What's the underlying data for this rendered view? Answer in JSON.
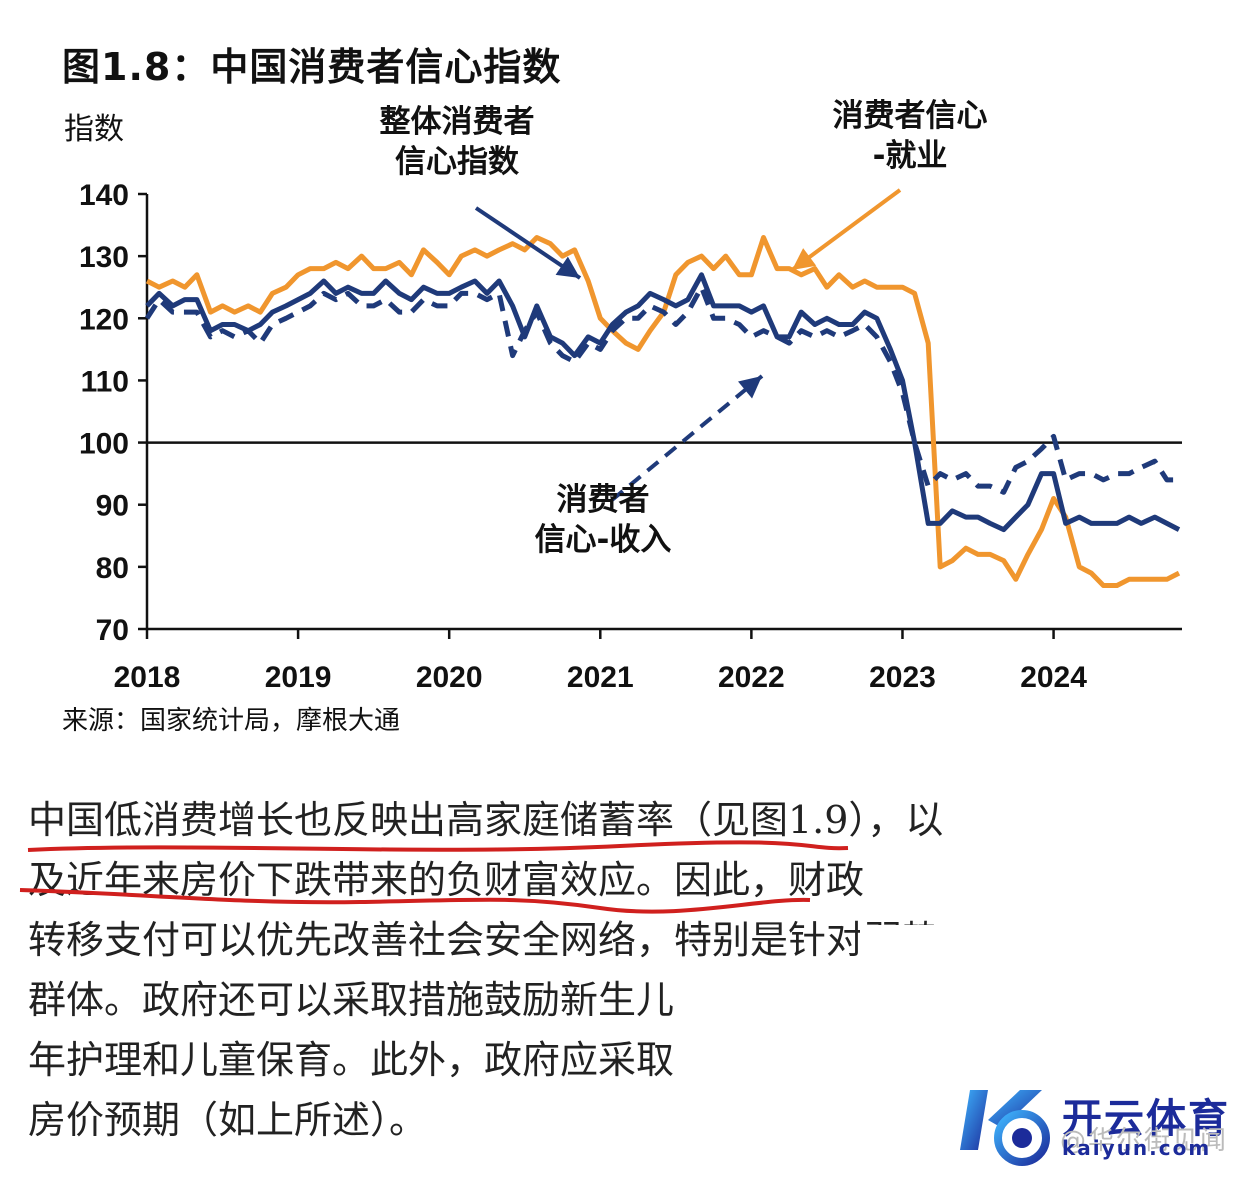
{
  "chart_data": {
    "type": "line",
    "title": "图1.8：中国消费者信心指数",
    "ylabel": "指数",
    "ylim": [
      70,
      140
    ],
    "yticks": [
      140,
      130,
      120,
      110,
      100,
      90,
      80,
      70
    ],
    "xlim": [
      2018.0,
      2024.85
    ],
    "xticks": [
      "2018",
      "2019",
      "2020",
      "2021",
      "2022",
      "2023",
      "2024"
    ],
    "reference_line": 100,
    "grid": false,
    "legend": "none",
    "source": "来源：国家统计局，摩根大通",
    "annotations": [
      {
        "text": "整体消费者信心指数",
        "line1": "整体消费者",
        "line2": "信心指数",
        "target_series": "overall"
      },
      {
        "text": "消费者信心-就业",
        "line1": "消费者信心",
        "line2": "-就业",
        "target_series": "employment"
      },
      {
        "text": "消费者信心-收入",
        "line1": "消费者",
        "line2": "信心-收入",
        "target_series": "income"
      }
    ],
    "series": [
      {
        "id": "employment",
        "color": "#f0962e",
        "dash": false,
        "points": [
          [
            2018.0,
            126
          ],
          [
            2018.08,
            125
          ],
          [
            2018.17,
            126
          ],
          [
            2018.25,
            125
          ],
          [
            2018.33,
            127
          ],
          [
            2018.42,
            121
          ],
          [
            2018.5,
            122
          ],
          [
            2018.58,
            121
          ],
          [
            2018.67,
            122
          ],
          [
            2018.75,
            121
          ],
          [
            2018.83,
            124
          ],
          [
            2018.92,
            125
          ],
          [
            2019.0,
            127
          ],
          [
            2019.08,
            128
          ],
          [
            2019.17,
            128
          ],
          [
            2019.25,
            129
          ],
          [
            2019.33,
            128
          ],
          [
            2019.42,
            130
          ],
          [
            2019.5,
            128
          ],
          [
            2019.58,
            128
          ],
          [
            2019.67,
            129
          ],
          [
            2019.75,
            127
          ],
          [
            2019.83,
            131
          ],
          [
            2019.92,
            129
          ],
          [
            2020.0,
            127
          ],
          [
            2020.08,
            130
          ],
          [
            2020.17,
            131
          ],
          [
            2020.25,
            130
          ],
          [
            2020.33,
            131
          ],
          [
            2020.42,
            132
          ],
          [
            2020.5,
            131
          ],
          [
            2020.58,
            133
          ],
          [
            2020.67,
            132
          ],
          [
            2020.75,
            130
          ],
          [
            2020.83,
            131
          ],
          [
            2020.92,
            126
          ],
          [
            2021.0,
            120
          ],
          [
            2021.08,
            118
          ],
          [
            2021.17,
            116
          ],
          [
            2021.25,
            115
          ],
          [
            2021.33,
            118
          ],
          [
            2021.42,
            121
          ],
          [
            2021.5,
            127
          ],
          [
            2021.58,
            129
          ],
          [
            2021.67,
            130
          ],
          [
            2021.75,
            128
          ],
          [
            2021.83,
            130
          ],
          [
            2021.92,
            127
          ],
          [
            2022.0,
            127
          ],
          [
            2022.08,
            133
          ],
          [
            2022.17,
            128
          ],
          [
            2022.25,
            128
          ],
          [
            2022.33,
            127
          ],
          [
            2022.42,
            128
          ],
          [
            2022.5,
            125
          ],
          [
            2022.58,
            127
          ],
          [
            2022.67,
            125
          ],
          [
            2022.75,
            126
          ],
          [
            2022.83,
            125
          ],
          [
            2022.92,
            125
          ],
          [
            2023.0,
            125
          ],
          [
            2023.08,
            124
          ],
          [
            2023.17,
            116
          ],
          [
            2023.25,
            80
          ],
          [
            2023.33,
            81
          ],
          [
            2023.42,
            83
          ],
          [
            2023.5,
            82
          ],
          [
            2023.58,
            82
          ],
          [
            2023.67,
            81
          ],
          [
            2023.75,
            78
          ],
          [
            2023.83,
            82
          ],
          [
            2023.92,
            86
          ],
          [
            2024.0,
            91
          ],
          [
            2024.08,
            88
          ],
          [
            2024.17,
            80
          ],
          [
            2024.25,
            79
          ],
          [
            2024.33,
            77
          ],
          [
            2024.42,
            77
          ],
          [
            2024.5,
            78
          ],
          [
            2024.58,
            78
          ],
          [
            2024.67,
            78
          ],
          [
            2024.75,
            78
          ],
          [
            2024.83,
            79
          ]
        ]
      },
      {
        "id": "overall",
        "color": "#1f3a7a",
        "dash": false,
        "points": [
          [
            2018.0,
            122
          ],
          [
            2018.08,
            124
          ],
          [
            2018.17,
            122
          ],
          [
            2018.25,
            123
          ],
          [
            2018.33,
            123
          ],
          [
            2018.42,
            118
          ],
          [
            2018.5,
            119
          ],
          [
            2018.58,
            119
          ],
          [
            2018.67,
            118
          ],
          [
            2018.75,
            119
          ],
          [
            2018.83,
            121
          ],
          [
            2018.92,
            122
          ],
          [
            2019.0,
            123
          ],
          [
            2019.08,
            124
          ],
          [
            2019.17,
            126
          ],
          [
            2019.25,
            124
          ],
          [
            2019.33,
            125
          ],
          [
            2019.42,
            124
          ],
          [
            2019.5,
            124
          ],
          [
            2019.58,
            126
          ],
          [
            2019.67,
            124
          ],
          [
            2019.75,
            123
          ],
          [
            2019.83,
            125
          ],
          [
            2019.92,
            124
          ],
          [
            2020.0,
            124
          ],
          [
            2020.08,
            125
          ],
          [
            2020.17,
            126
          ],
          [
            2020.25,
            124
          ],
          [
            2020.33,
            126
          ],
          [
            2020.42,
            122
          ],
          [
            2020.5,
            117
          ],
          [
            2020.58,
            122
          ],
          [
            2020.67,
            117
          ],
          [
            2020.75,
            116
          ],
          [
            2020.83,
            114
          ],
          [
            2020.92,
            117
          ],
          [
            2021.0,
            116
          ],
          [
            2021.08,
            119
          ],
          [
            2021.17,
            121
          ],
          [
            2021.25,
            122
          ],
          [
            2021.33,
            124
          ],
          [
            2021.42,
            123
          ],
          [
            2021.5,
            122
          ],
          [
            2021.58,
            123
          ],
          [
            2021.67,
            127
          ],
          [
            2021.75,
            122
          ],
          [
            2021.83,
            122
          ],
          [
            2021.92,
            122
          ],
          [
            2022.0,
            121
          ],
          [
            2022.08,
            122
          ],
          [
            2022.17,
            117
          ],
          [
            2022.25,
            117
          ],
          [
            2022.33,
            121
          ],
          [
            2022.42,
            119
          ],
          [
            2022.5,
            120
          ],
          [
            2022.58,
            119
          ],
          [
            2022.67,
            119
          ],
          [
            2022.75,
            121
          ],
          [
            2022.83,
            120
          ],
          [
            2022.92,
            115
          ],
          [
            2023.0,
            110
          ],
          [
            2023.08,
            100
          ],
          [
            2023.17,
            87
          ],
          [
            2023.25,
            87
          ],
          [
            2023.33,
            89
          ],
          [
            2023.42,
            88
          ],
          [
            2023.5,
            88
          ],
          [
            2023.58,
            87
          ],
          [
            2023.67,
            86
          ],
          [
            2023.75,
            88
          ],
          [
            2023.83,
            90
          ],
          [
            2023.92,
            95
          ],
          [
            2024.0,
            95
          ],
          [
            2024.08,
            87
          ],
          [
            2024.17,
            88
          ],
          [
            2024.25,
            87
          ],
          [
            2024.33,
            87
          ],
          [
            2024.42,
            87
          ],
          [
            2024.5,
            88
          ],
          [
            2024.58,
            87
          ],
          [
            2024.67,
            88
          ],
          [
            2024.75,
            87
          ],
          [
            2024.83,
            86
          ]
        ]
      },
      {
        "id": "income",
        "color": "#1f3a7a",
        "dash": true,
        "points": [
          [
            2018.0,
            120
          ],
          [
            2018.08,
            123
          ],
          [
            2018.17,
            121
          ],
          [
            2018.25,
            121
          ],
          [
            2018.33,
            121
          ],
          [
            2018.42,
            117
          ],
          [
            2018.5,
            118
          ],
          [
            2018.58,
            117
          ],
          [
            2018.67,
            118
          ],
          [
            2018.75,
            116
          ],
          [
            2018.83,
            119
          ],
          [
            2018.92,
            120
          ],
          [
            2019.0,
            121
          ],
          [
            2019.08,
            122
          ],
          [
            2019.17,
            124
          ],
          [
            2019.25,
            123
          ],
          [
            2019.33,
            124
          ],
          [
            2019.42,
            122
          ],
          [
            2019.5,
            122
          ],
          [
            2019.58,
            123
          ],
          [
            2019.67,
            121
          ],
          [
            2019.75,
            121
          ],
          [
            2019.83,
            123
          ],
          [
            2019.92,
            122
          ],
          [
            2020.0,
            122
          ],
          [
            2020.08,
            124
          ],
          [
            2020.17,
            124
          ],
          [
            2020.25,
            123
          ],
          [
            2020.33,
            124
          ],
          [
            2020.42,
            114
          ],
          [
            2020.5,
            118
          ],
          [
            2020.58,
            121
          ],
          [
            2020.67,
            116
          ],
          [
            2020.75,
            114
          ],
          [
            2020.83,
            113
          ],
          [
            2020.92,
            116
          ],
          [
            2021.0,
            115
          ],
          [
            2021.08,
            118
          ],
          [
            2021.17,
            120
          ],
          [
            2021.25,
            120
          ],
          [
            2021.33,
            122
          ],
          [
            2021.42,
            121
          ],
          [
            2021.5,
            119
          ],
          [
            2021.58,
            121
          ],
          [
            2021.67,
            125
          ],
          [
            2021.75,
            120
          ],
          [
            2021.83,
            120
          ],
          [
            2021.92,
            119
          ],
          [
            2022.0,
            117
          ],
          [
            2022.08,
            118
          ],
          [
            2022.17,
            117
          ],
          [
            2022.25,
            116
          ],
          [
            2022.33,
            118
          ],
          [
            2022.42,
            117
          ],
          [
            2022.5,
            118
          ],
          [
            2022.58,
            117
          ],
          [
            2022.67,
            118
          ],
          [
            2022.75,
            119
          ],
          [
            2022.83,
            117
          ],
          [
            2022.92,
            113
          ],
          [
            2023.0,
            108
          ],
          [
            2023.08,
            100
          ],
          [
            2023.17,
            93
          ],
          [
            2023.25,
            95
          ],
          [
            2023.33,
            94
          ],
          [
            2023.42,
            95
          ],
          [
            2023.5,
            93
          ],
          [
            2023.58,
            93
          ],
          [
            2023.67,
            92
          ],
          [
            2023.75,
            96
          ],
          [
            2023.83,
            97
          ],
          [
            2023.92,
            99
          ],
          [
            2024.0,
            101
          ],
          [
            2024.08,
            94
          ],
          [
            2024.17,
            95
          ],
          [
            2024.25,
            95
          ],
          [
            2024.33,
            94
          ],
          [
            2024.42,
            95
          ],
          [
            2024.5,
            95
          ],
          [
            2024.58,
            96
          ],
          [
            2024.67,
            97
          ],
          [
            2024.75,
            94
          ],
          [
            2024.83,
            94
          ]
        ]
      }
    ]
  },
  "body_text": {
    "line1": "中国低消费增长也反映出高家庭储蓄率（见图1.9），以",
    "line2": "及近年来房价下跌带来的负财富效应。因此，财政",
    "line3": "转移支付可以优先改善社会安全网络，特别是针对弱势",
    "line4": "群体。政府还可以采取措施鼓励新生儿",
    "line5": "年护理和儿童保育。此外，政府应采取",
    "line6": "房价预期（如上所述）。"
  },
  "logo": {
    "name": "开云体育",
    "url": "kaiyun.com",
    "watermark": "@华尔街见闻"
  },
  "colors": {
    "underline": "#d0201e",
    "axis": "#111111",
    "arrow_orange": "#f0962e",
    "arrow_navy": "#1f3a7a"
  }
}
